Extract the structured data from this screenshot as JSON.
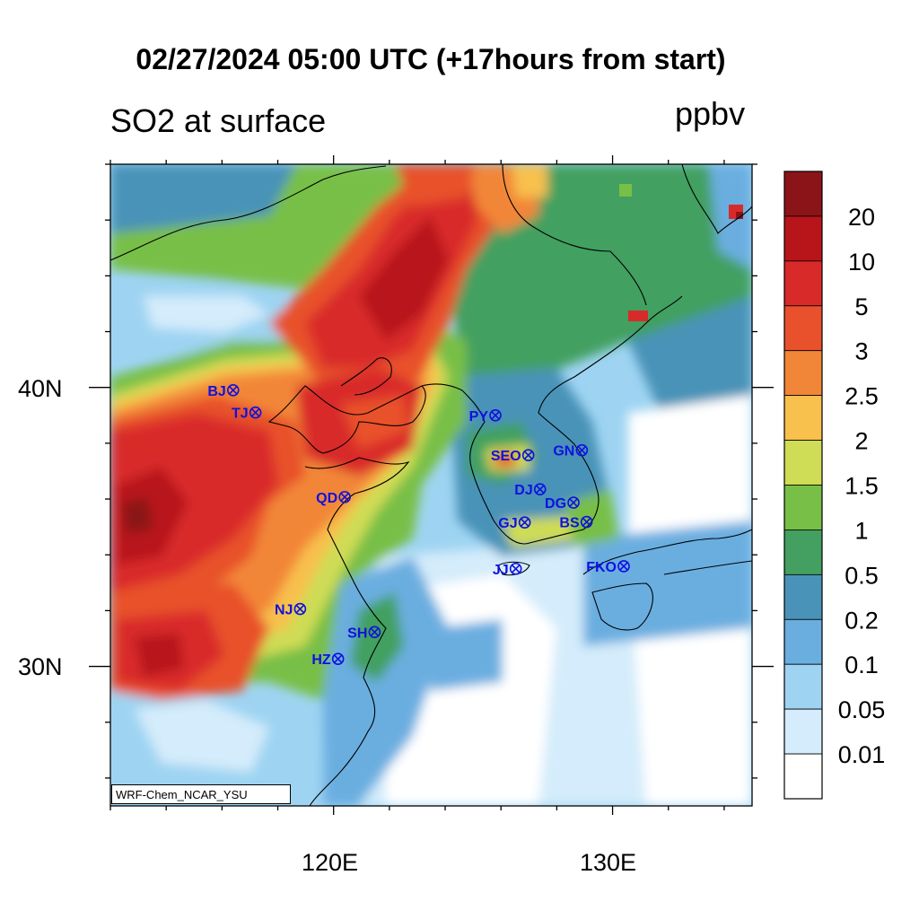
{
  "title": "02/27/2024 05:00 UTC (+17hours from start)",
  "subtitle_left": "SO2 at surface",
  "subtitle_right": "ppbv",
  "credit": "WRF-Chem_NCAR_YSU",
  "axes": {
    "lon_labels": [
      "120E",
      "130E"
    ],
    "lat_labels": [
      "40N",
      "30N"
    ],
    "lon_range": [
      112,
      135
    ],
    "lat_range": [
      25,
      48
    ]
  },
  "colorbar": {
    "levels": [
      "20",
      "10",
      "5",
      "3",
      "2.5",
      "2",
      "1.5",
      "1",
      "0.5",
      "0.2",
      "0.1",
      "0.05",
      "0.01"
    ],
    "colors": [
      "#8b1418",
      "#b8151b",
      "#d92a2a",
      "#e8512c",
      "#f28638",
      "#f8c04d",
      "#cfdc55",
      "#78bf47",
      "#43a060",
      "#4a93b8",
      "#6aaee0",
      "#9ed4f2",
      "#d4ecfb",
      "#ffffff"
    ]
  },
  "stations": [
    {
      "code": "BJ",
      "lon": 116.4,
      "lat": 39.9
    },
    {
      "code": "TJ",
      "lon": 117.2,
      "lat": 39.1
    },
    {
      "code": "PY",
      "lon": 125.8,
      "lat": 39.0
    },
    {
      "code": "SEO",
      "lon": 126.98,
      "lat": 37.57
    },
    {
      "code": "GN",
      "lon": 128.9,
      "lat": 37.75
    },
    {
      "code": "QD",
      "lon": 120.4,
      "lat": 36.07
    },
    {
      "code": "DJ",
      "lon": 127.4,
      "lat": 36.35
    },
    {
      "code": "DG",
      "lon": 128.6,
      "lat": 35.87
    },
    {
      "code": "GJ",
      "lon": 126.85,
      "lat": 35.16
    },
    {
      "code": "BS",
      "lon": 129.07,
      "lat": 35.18
    },
    {
      "code": "JJ",
      "lon": 126.53,
      "lat": 33.5
    },
    {
      "code": "FKO",
      "lon": 130.4,
      "lat": 33.59
    },
    {
      "code": "NJ",
      "lon": 118.8,
      "lat": 32.06
    },
    {
      "code": "SH",
      "lon": 121.47,
      "lat": 31.23
    },
    {
      "code": "HZ",
      "lon": 120.16,
      "lat": 30.27
    }
  ]
}
